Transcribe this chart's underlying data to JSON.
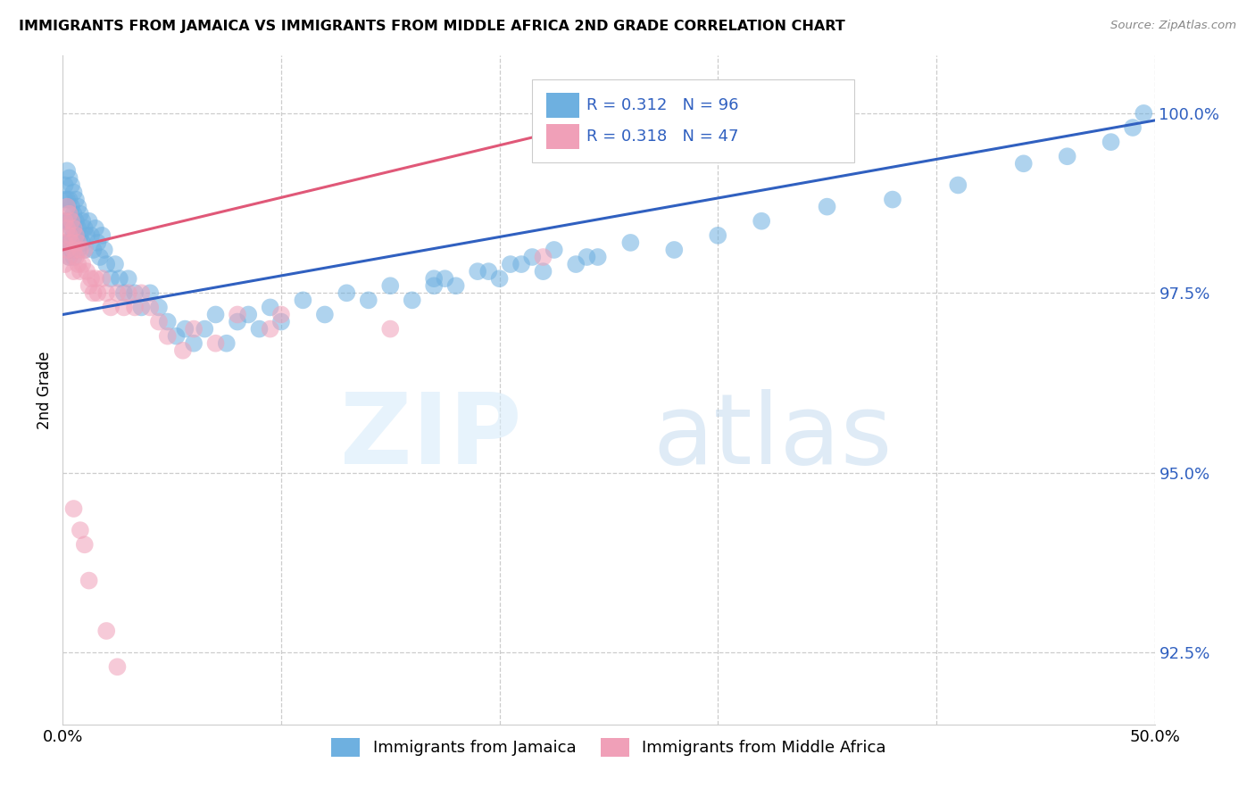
{
  "title": "IMMIGRANTS FROM JAMAICA VS IMMIGRANTS FROM MIDDLE AFRICA 2ND GRADE CORRELATION CHART",
  "source": "Source: ZipAtlas.com",
  "ylabel": "2nd Grade",
  "ytick_labels": [
    "92.5%",
    "95.0%",
    "97.5%",
    "100.0%"
  ],
  "ytick_values": [
    0.925,
    0.95,
    0.975,
    1.0
  ],
  "xmin": 0.0,
  "xmax": 0.5,
  "ymin": 0.915,
  "ymax": 1.008,
  "r1": 0.312,
  "n1": 96,
  "r2": 0.318,
  "n2": 47,
  "color_blue": "#6EB0E0",
  "color_pink": "#F0A0B8",
  "color_line_blue": "#3060C0",
  "color_line_pink": "#E05878",
  "legend1_label": "Immigrants from Jamaica",
  "legend2_label": "Immigrants from Middle Africa",
  "jamaica_x": [
    0.001,
    0.001,
    0.001,
    0.002,
    0.002,
    0.002,
    0.002,
    0.003,
    0.003,
    0.003,
    0.003,
    0.003,
    0.004,
    0.004,
    0.004,
    0.004,
    0.005,
    0.005,
    0.005,
    0.005,
    0.006,
    0.006,
    0.006,
    0.007,
    0.007,
    0.007,
    0.008,
    0.008,
    0.009,
    0.009,
    0.01,
    0.01,
    0.011,
    0.012,
    0.013,
    0.014,
    0.015,
    0.016,
    0.017,
    0.018,
    0.019,
    0.02,
    0.022,
    0.024,
    0.026,
    0.028,
    0.03,
    0.033,
    0.036,
    0.04,
    0.044,
    0.048,
    0.052,
    0.056,
    0.06,
    0.065,
    0.07,
    0.075,
    0.08,
    0.085,
    0.09,
    0.095,
    0.1,
    0.11,
    0.12,
    0.13,
    0.14,
    0.15,
    0.16,
    0.17,
    0.18,
    0.19,
    0.2,
    0.21,
    0.22,
    0.24,
    0.26,
    0.28,
    0.3,
    0.32,
    0.35,
    0.38,
    0.41,
    0.44,
    0.46,
    0.48,
    0.49,
    0.495,
    0.17,
    0.175,
    0.195,
    0.205,
    0.215,
    0.225,
    0.235,
    0.245
  ],
  "jamaica_y": [
    0.99,
    0.988,
    0.985,
    0.992,
    0.988,
    0.985,
    0.982,
    0.991,
    0.988,
    0.985,
    0.982,
    0.98,
    0.99,
    0.987,
    0.984,
    0.981,
    0.989,
    0.986,
    0.983,
    0.98,
    0.988,
    0.985,
    0.982,
    0.987,
    0.984,
    0.981,
    0.986,
    0.983,
    0.985,
    0.982,
    0.984,
    0.981,
    0.983,
    0.985,
    0.983,
    0.981,
    0.984,
    0.982,
    0.98,
    0.983,
    0.981,
    0.979,
    0.977,
    0.979,
    0.977,
    0.975,
    0.977,
    0.975,
    0.973,
    0.975,
    0.973,
    0.971,
    0.969,
    0.97,
    0.968,
    0.97,
    0.972,
    0.968,
    0.971,
    0.972,
    0.97,
    0.973,
    0.971,
    0.974,
    0.972,
    0.975,
    0.974,
    0.976,
    0.974,
    0.977,
    0.976,
    0.978,
    0.977,
    0.979,
    0.978,
    0.98,
    0.982,
    0.981,
    0.983,
    0.985,
    0.987,
    0.988,
    0.99,
    0.993,
    0.994,
    0.996,
    0.998,
    1.0,
    0.976,
    0.977,
    0.978,
    0.979,
    0.98,
    0.981,
    0.979,
    0.98
  ],
  "africa_x": [
    0.001,
    0.001,
    0.001,
    0.002,
    0.002,
    0.002,
    0.003,
    0.003,
    0.003,
    0.004,
    0.004,
    0.005,
    0.005,
    0.005,
    0.006,
    0.006,
    0.007,
    0.007,
    0.008,
    0.008,
    0.009,
    0.01,
    0.011,
    0.012,
    0.013,
    0.014,
    0.015,
    0.016,
    0.018,
    0.02,
    0.022,
    0.025,
    0.028,
    0.03,
    0.033,
    0.036,
    0.04,
    0.044,
    0.048,
    0.055,
    0.06,
    0.07,
    0.08,
    0.095,
    0.1,
    0.15,
    0.22
  ],
  "africa_y": [
    0.985,
    0.982,
    0.979,
    0.987,
    0.984,
    0.981,
    0.986,
    0.983,
    0.98,
    0.985,
    0.982,
    0.984,
    0.981,
    0.978,
    0.983,
    0.98,
    0.982,
    0.979,
    0.981,
    0.978,
    0.979,
    0.981,
    0.978,
    0.976,
    0.977,
    0.975,
    0.977,
    0.975,
    0.977,
    0.975,
    0.973,
    0.975,
    0.973,
    0.975,
    0.973,
    0.975,
    0.973,
    0.971,
    0.969,
    0.967,
    0.97,
    0.968,
    0.972,
    0.97,
    0.972,
    0.97,
    0.98
  ],
  "africa_x_outliers": [
    0.005,
    0.008,
    0.01,
    0.012,
    0.02,
    0.025
  ],
  "africa_y_outliers": [
    0.945,
    0.942,
    0.94,
    0.935,
    0.928,
    0.923
  ],
  "jamaica_line_x": [
    0.0,
    0.5
  ],
  "jamaica_line_y": [
    0.972,
    0.999
  ],
  "africa_line_x": [
    0.0,
    0.22
  ],
  "africa_line_y": [
    0.981,
    0.997
  ]
}
